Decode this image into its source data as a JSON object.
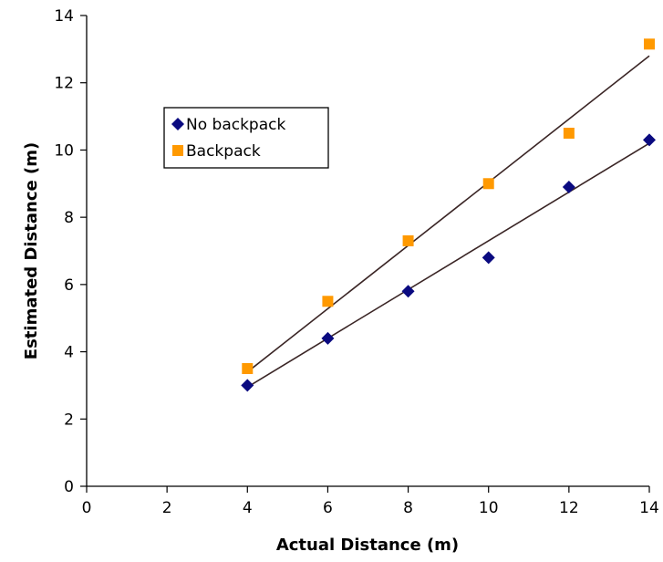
{
  "chart_data": {
    "type": "scatter",
    "xlabel": "Actual Distance (m)",
    "ylabel": "Estimated Distance (m)",
    "xlim": [
      0,
      14
    ],
    "ylim": [
      0,
      14
    ],
    "xticks": [
      0,
      2,
      4,
      6,
      8,
      10,
      12,
      14
    ],
    "yticks": [
      0,
      2,
      4,
      6,
      8,
      10,
      12,
      14
    ],
    "grid": false,
    "legend_position": "upper-left",
    "series": [
      {
        "name": "No backpack",
        "marker": "diamond",
        "color": "#0a0a80",
        "x": [
          4,
          6,
          8,
          10,
          12,
          14
        ],
        "y": [
          3.0,
          4.4,
          5.8,
          6.8,
          8.9,
          10.3
        ],
        "trendline": {
          "x": [
            4,
            14
          ],
          "y": [
            2.95,
            10.2
          ]
        }
      },
      {
        "name": "Backpack",
        "marker": "square",
        "color": "#ff9900",
        "x": [
          4,
          6,
          8,
          10,
          12,
          14
        ],
        "y": [
          3.5,
          5.5,
          7.3,
          9.0,
          10.5,
          13.15
        ],
        "trendline": {
          "x": [
            4,
            14
          ],
          "y": [
            3.4,
            12.8
          ]
        }
      }
    ]
  }
}
